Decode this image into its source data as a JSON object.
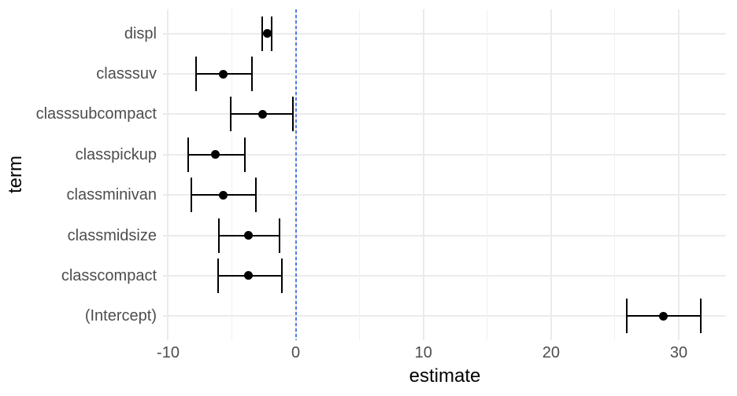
{
  "chart_data": {
    "type": "scatter",
    "subtype": "dot-and-whisker coefficient plot with horizontal error bars",
    "orientation": "horizontal",
    "grid": true,
    "legend": "none",
    "terms": [
      {
        "label": "displ",
        "estimate": -2.2,
        "conf_low": -2.6,
        "conf_high": -1.9
      },
      {
        "label": "classsuv",
        "estimate": -5.7,
        "conf_low": -7.8,
        "conf_high": -3.4
      },
      {
        "label": "classsubcompact",
        "estimate": -2.6,
        "conf_low": -5.1,
        "conf_high": -0.2
      },
      {
        "label": "classpickup",
        "estimate": -6.3,
        "conf_low": -8.4,
        "conf_high": -4.0
      },
      {
        "label": "classminivan",
        "estimate": -5.7,
        "conf_low": -8.2,
        "conf_high": -3.1
      },
      {
        "label": "classmidsize",
        "estimate": -3.7,
        "conf_low": -6.0,
        "conf_high": -1.3
      },
      {
        "label": "classcompact",
        "estimate": -3.7,
        "conf_low": -6.1,
        "conf_high": -1.1
      },
      {
        "label": "(Intercept)",
        "estimate": 28.8,
        "conf_low": 25.9,
        "conf_high": 31.7
      }
    ],
    "x_axis": {
      "label": "estimate",
      "range": [
        -10.4,
        33.7
      ],
      "ticks": [
        {
          "value": -10,
          "label": "-10"
        },
        {
          "value": 0,
          "label": "0"
        },
        {
          "value": 10,
          "label": "10"
        },
        {
          "value": 20,
          "label": "20"
        },
        {
          "value": 30,
          "label": "30"
        }
      ],
      "minor_ticks": [
        -5,
        5,
        15,
        25
      ]
    },
    "y_axis": {
      "label": "term",
      "categories_top_to_bottom": [
        "displ",
        "classsuv",
        "classsubcompact",
        "classpickup",
        "classminivan",
        "classmidsize",
        "classcompact",
        "(Intercept)"
      ]
    },
    "reference_line": {
      "x": 0,
      "style": "dashed",
      "color": "#4f7de8"
    },
    "colors": {
      "point": "#000000",
      "whisker": "#000000",
      "grid_major": "#ebebeb",
      "grid_minor": "#f0f0f0",
      "axis_text": "#4d4d4d",
      "axis_title": "#000000",
      "background": "#ffffff"
    }
  }
}
